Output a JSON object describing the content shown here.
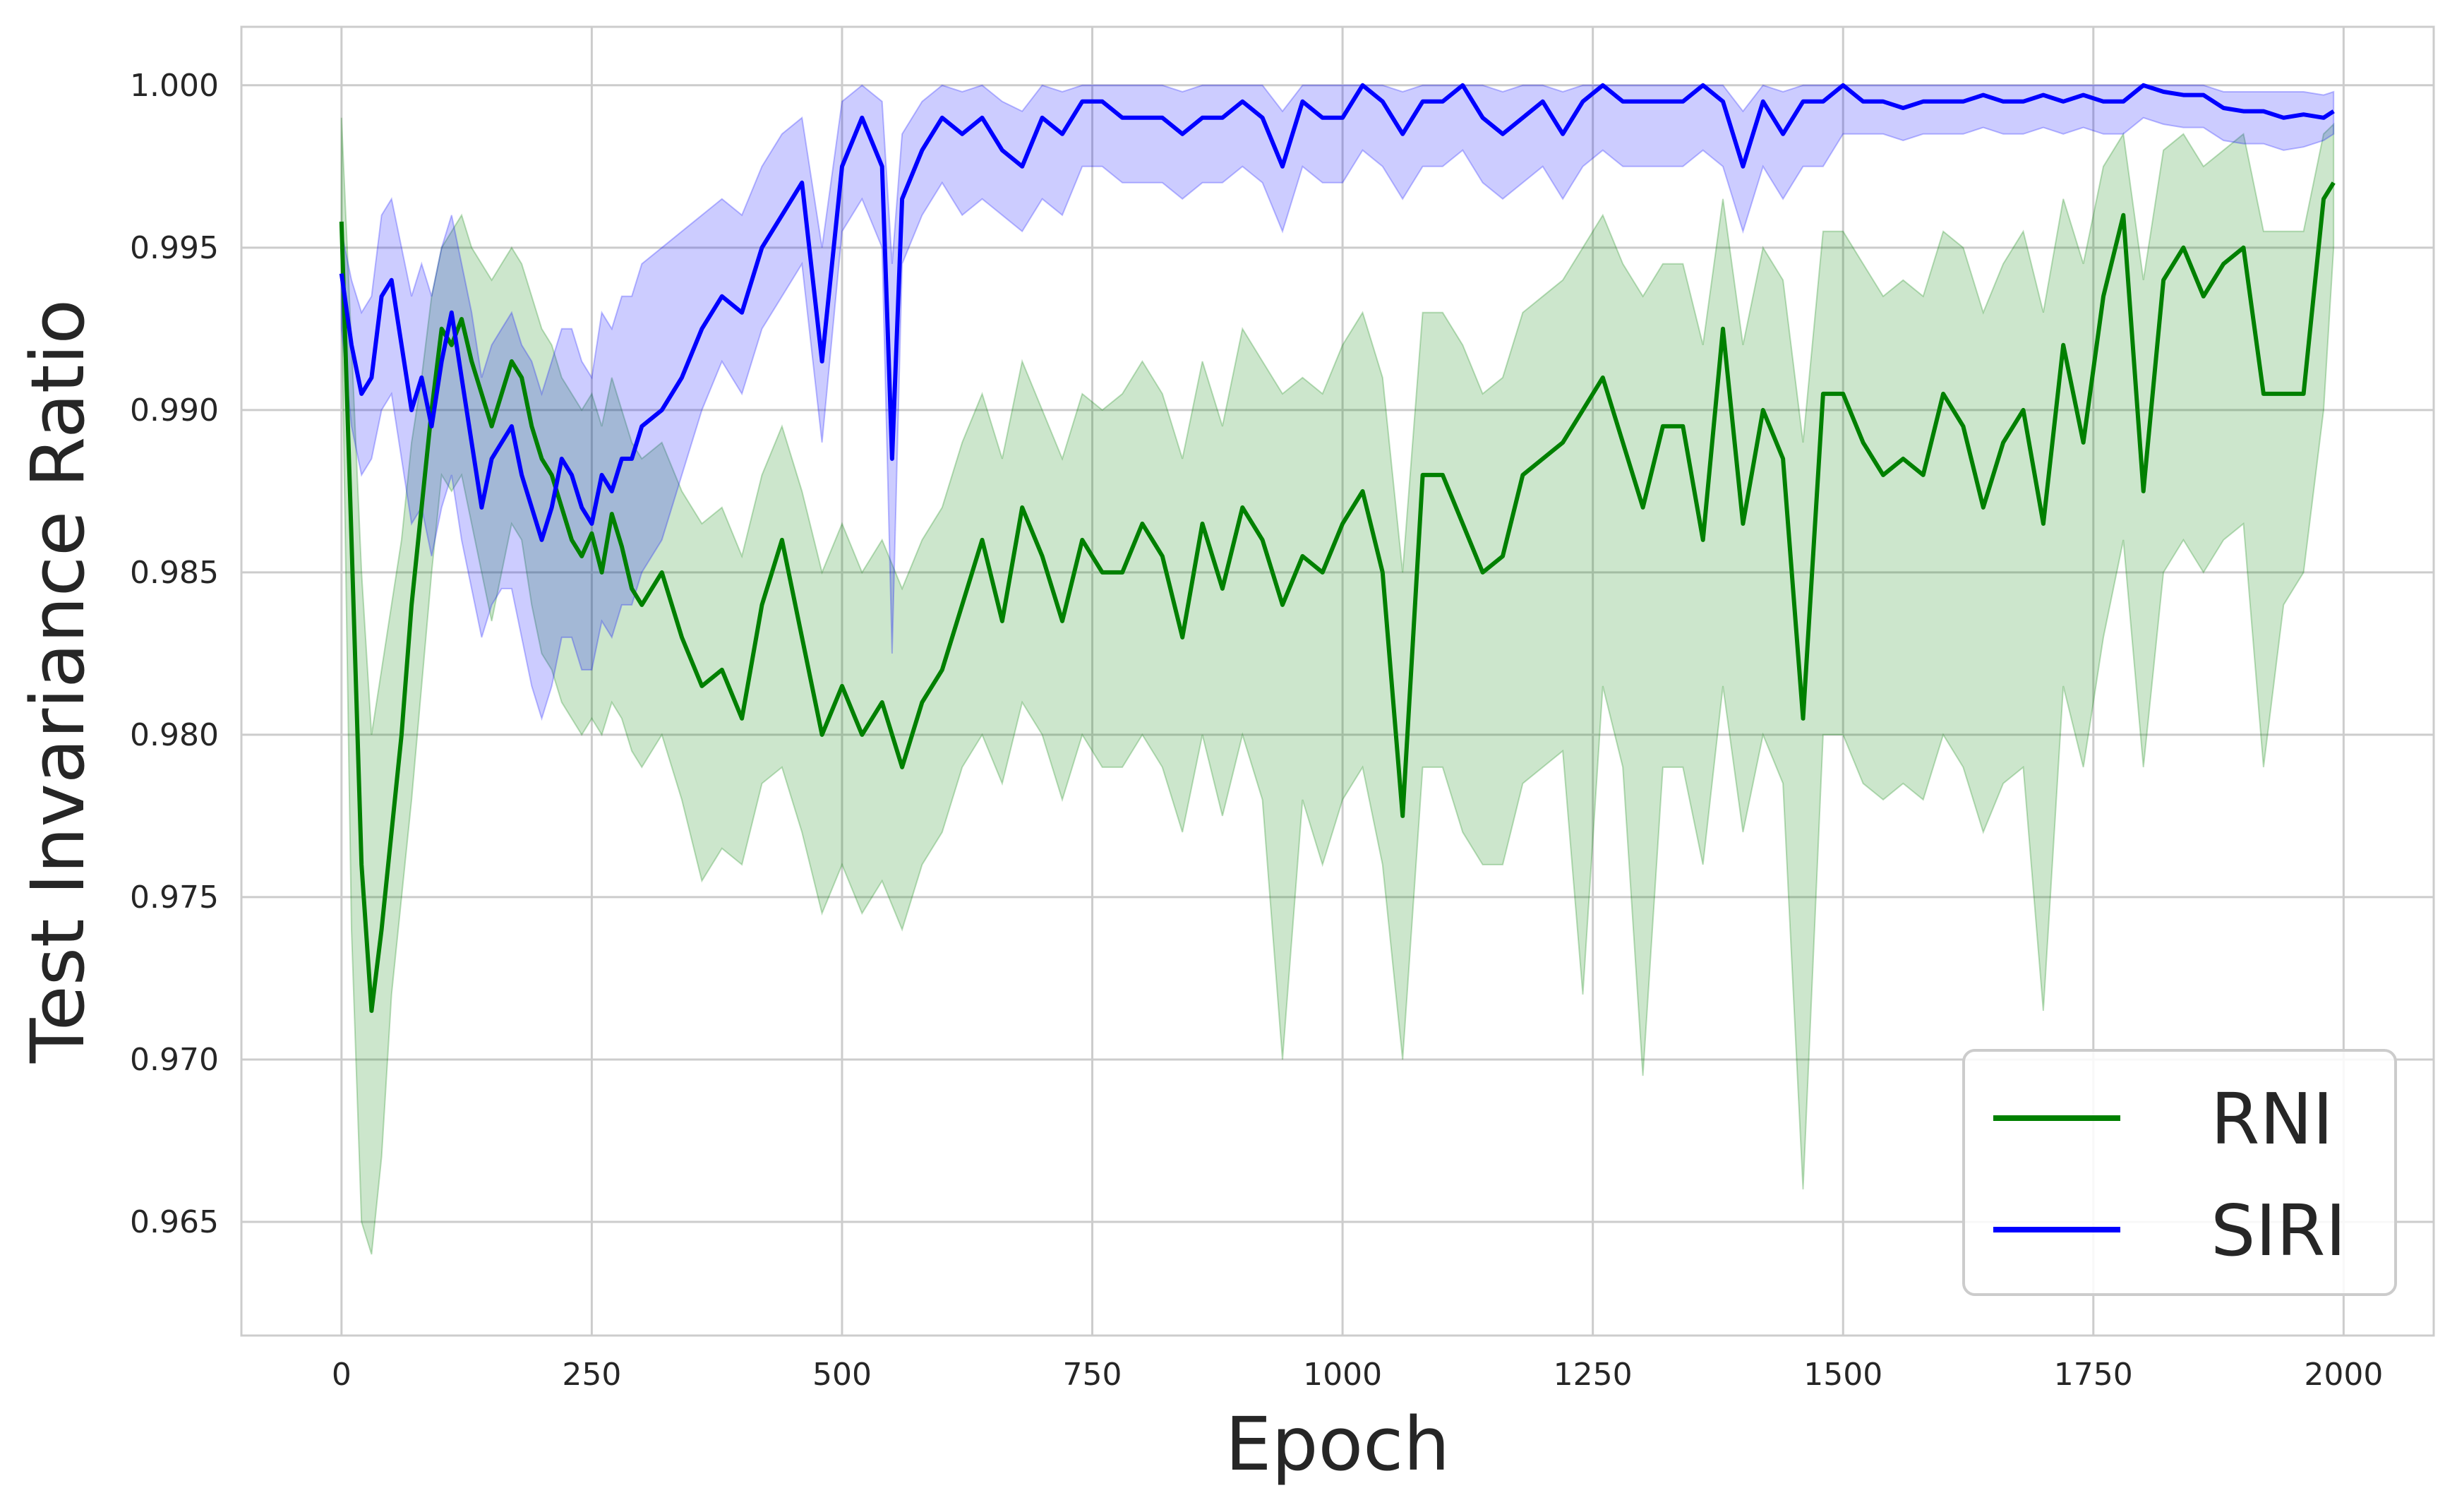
{
  "chart_data": {
    "type": "line",
    "title": "",
    "xlabel": "Epoch",
    "ylabel": "Test Invariance Ratio",
    "xlim": [
      -100,
      2090
    ],
    "ylim": [
      0.9615,
      1.0018
    ],
    "xticks": [
      0,
      250,
      500,
      750,
      1000,
      1250,
      1500,
      1750,
      2000
    ],
    "xtick_labels": [
      "0",
      "250",
      "500",
      "750",
      "1000",
      "1250",
      "1500",
      "1750",
      "2000"
    ],
    "yticks": [
      0.965,
      0.97,
      0.975,
      0.98,
      0.985,
      0.99,
      0.995,
      1.0
    ],
    "ytick_labels": [
      "0.965",
      "0.970",
      "0.975",
      "0.980",
      "0.985",
      "0.990",
      "0.995",
      "1.000"
    ],
    "grid": true,
    "legend_position": "bottom-right",
    "series": [
      {
        "name": "RNI",
        "color": "#008000",
        "band_color": "#008000",
        "x": [
          0,
          10,
          20,
          30,
          40,
          50,
          60,
          70,
          80,
          90,
          100,
          110,
          120,
          130,
          140,
          150,
          160,
          170,
          180,
          190,
          200,
          210,
          220,
          230,
          240,
          250,
          260,
          270,
          280,
          290,
          300,
          320,
          340,
          360,
          380,
          400,
          420,
          440,
          460,
          480,
          500,
          520,
          540,
          560,
          580,
          600,
          620,
          640,
          660,
          680,
          700,
          720,
          740,
          760,
          780,
          800,
          820,
          840,
          860,
          880,
          900,
          920,
          940,
          960,
          980,
          1000,
          1020,
          1040,
          1060,
          1080,
          1100,
          1120,
          1140,
          1160,
          1180,
          1200,
          1220,
          1240,
          1260,
          1280,
          1300,
          1320,
          1340,
          1360,
          1380,
          1400,
          1420,
          1440,
          1460,
          1480,
          1500,
          1520,
          1540,
          1560,
          1580,
          1600,
          1620,
          1640,
          1660,
          1680,
          1700,
          1720,
          1740,
          1760,
          1780,
          1800,
          1820,
          1840,
          1860,
          1880,
          1900,
          1920,
          1940,
          1960,
          1980,
          1990
        ],
        "values": [
          0.9958,
          0.986,
          0.976,
          0.9715,
          0.974,
          0.977,
          0.98,
          0.984,
          0.987,
          0.99,
          0.9925,
          0.992,
          0.9928,
          0.9915,
          0.9905,
          0.9895,
          0.9905,
          0.9915,
          0.991,
          0.9895,
          0.9885,
          0.988,
          0.987,
          0.986,
          0.9855,
          0.9862,
          0.985,
          0.9868,
          0.9858,
          0.9845,
          0.984,
          0.985,
          0.983,
          0.9815,
          0.982,
          0.9805,
          0.984,
          0.986,
          0.983,
          0.98,
          0.9815,
          0.98,
          0.981,
          0.979,
          0.981,
          0.982,
          0.984,
          0.986,
          0.9835,
          0.987,
          0.9855,
          0.9835,
          0.986,
          0.985,
          0.985,
          0.9865,
          0.9855,
          0.983,
          0.9865,
          0.9845,
          0.987,
          0.986,
          0.984,
          0.9855,
          0.985,
          0.9865,
          0.9875,
          0.985,
          0.9775,
          0.988,
          0.988,
          0.9865,
          0.985,
          0.9855,
          0.988,
          0.9885,
          0.989,
          0.99,
          0.991,
          0.989,
          0.987,
          0.9895,
          0.9895,
          0.986,
          0.9925,
          0.9865,
          0.99,
          0.9885,
          0.9805,
          0.9905,
          0.9905,
          0.989,
          0.988,
          0.9885,
          0.988,
          0.9905,
          0.9895,
          0.987,
          0.989,
          0.99,
          0.9865,
          0.992,
          0.989,
          0.9935,
          0.996,
          0.9875,
          0.994,
          0.995,
          0.9935,
          0.9945,
          0.995,
          0.9905,
          0.9905,
          0.9905,
          0.9965,
          0.997
        ],
        "lower": [
          0.9935,
          0.974,
          0.965,
          0.964,
          0.967,
          0.972,
          0.975,
          0.978,
          0.9815,
          0.985,
          0.988,
          0.9875,
          0.988,
          0.9865,
          0.985,
          0.9835,
          0.985,
          0.9865,
          0.986,
          0.984,
          0.9825,
          0.982,
          0.981,
          0.9805,
          0.98,
          0.9805,
          0.98,
          0.981,
          0.9805,
          0.9795,
          0.979,
          0.98,
          0.978,
          0.9755,
          0.9765,
          0.976,
          0.9785,
          0.979,
          0.977,
          0.9745,
          0.976,
          0.9745,
          0.9755,
          0.974,
          0.976,
          0.977,
          0.979,
          0.98,
          0.9785,
          0.981,
          0.98,
          0.978,
          0.98,
          0.979,
          0.979,
          0.98,
          0.979,
          0.977,
          0.98,
          0.9775,
          0.98,
          0.978,
          0.97,
          0.978,
          0.976,
          0.978,
          0.979,
          0.976,
          0.97,
          0.979,
          0.979,
          0.977,
          0.976,
          0.976,
          0.9785,
          0.979,
          0.9795,
          0.972,
          0.9815,
          0.979,
          0.9695,
          0.979,
          0.979,
          0.976,
          0.9815,
          0.977,
          0.98,
          0.9785,
          0.966,
          0.98,
          0.98,
          0.9785,
          0.978,
          0.9785,
          0.978,
          0.98,
          0.979,
          0.977,
          0.9785,
          0.979,
          0.9715,
          0.9815,
          0.979,
          0.983,
          0.986,
          0.979,
          0.985,
          0.986,
          0.985,
          0.986,
          0.9865,
          0.979,
          0.984,
          0.985,
          0.99,
          0.995
        ],
        "upper": [
          0.999,
          0.992,
          0.985,
          0.98,
          0.982,
          0.984,
          0.986,
          0.989,
          0.991,
          0.9935,
          0.995,
          0.9955,
          0.996,
          0.995,
          0.9945,
          0.994,
          0.9945,
          0.995,
          0.9945,
          0.9935,
          0.9925,
          0.992,
          0.991,
          0.9905,
          0.99,
          0.9905,
          0.9895,
          0.991,
          0.99,
          0.989,
          0.9885,
          0.989,
          0.9875,
          0.9865,
          0.987,
          0.9855,
          0.988,
          0.9895,
          0.9875,
          0.985,
          0.9865,
          0.985,
          0.986,
          0.9845,
          0.986,
          0.987,
          0.989,
          0.9905,
          0.9885,
          0.9915,
          0.99,
          0.9885,
          0.9905,
          0.99,
          0.9905,
          0.9915,
          0.9905,
          0.9885,
          0.9915,
          0.9895,
          0.9925,
          0.9915,
          0.9905,
          0.991,
          0.9905,
          0.992,
          0.993,
          0.991,
          0.985,
          0.993,
          0.993,
          0.992,
          0.9905,
          0.991,
          0.993,
          0.9935,
          0.994,
          0.995,
          0.996,
          0.9945,
          0.9935,
          0.9945,
          0.9945,
          0.992,
          0.9965,
          0.992,
          0.995,
          0.994,
          0.989,
          0.9955,
          0.9955,
          0.9945,
          0.9935,
          0.994,
          0.9935,
          0.9955,
          0.995,
          0.993,
          0.9945,
          0.9955,
          0.993,
          0.9965,
          0.9945,
          0.9975,
          0.9985,
          0.994,
          0.998,
          0.9985,
          0.9975,
          0.998,
          0.9985,
          0.9955,
          0.9955,
          0.9955,
          0.9985,
          0.9988
        ]
      },
      {
        "name": "SIRI",
        "color": "#0000ff",
        "band_color": "#0000ff",
        "x": [
          0,
          10,
          20,
          30,
          40,
          50,
          60,
          70,
          80,
          90,
          100,
          110,
          120,
          130,
          140,
          150,
          160,
          170,
          180,
          190,
          200,
          210,
          220,
          230,
          240,
          250,
          260,
          270,
          280,
          290,
          300,
          320,
          340,
          360,
          380,
          400,
          420,
          440,
          460,
          480,
          500,
          520,
          540,
          550,
          560,
          580,
          600,
          620,
          640,
          660,
          680,
          700,
          720,
          740,
          760,
          780,
          800,
          820,
          840,
          860,
          880,
          900,
          920,
          940,
          960,
          980,
          1000,
          1020,
          1040,
          1060,
          1080,
          1100,
          1120,
          1140,
          1160,
          1180,
          1200,
          1220,
          1240,
          1260,
          1280,
          1300,
          1320,
          1340,
          1360,
          1380,
          1400,
          1420,
          1440,
          1460,
          1480,
          1500,
          1520,
          1540,
          1560,
          1580,
          1600,
          1620,
          1640,
          1660,
          1680,
          1700,
          1720,
          1740,
          1760,
          1780,
          1800,
          1820,
          1840,
          1860,
          1880,
          1900,
          1920,
          1940,
          1960,
          1980,
          1990
        ],
        "values": [
          0.9942,
          0.992,
          0.9905,
          0.991,
          0.9935,
          0.994,
          0.992,
          0.99,
          0.991,
          0.9895,
          0.9915,
          0.993,
          0.991,
          0.989,
          0.987,
          0.9885,
          0.989,
          0.9895,
          0.988,
          0.987,
          0.986,
          0.987,
          0.9885,
          0.988,
          0.987,
          0.9865,
          0.988,
          0.9875,
          0.9885,
          0.9885,
          0.9895,
          0.99,
          0.991,
          0.9925,
          0.9935,
          0.993,
          0.995,
          0.996,
          0.997,
          0.9915,
          0.9975,
          0.999,
          0.9975,
          0.9885,
          0.9965,
          0.998,
          0.999,
          0.9985,
          0.999,
          0.998,
          0.9975,
          0.999,
          0.9985,
          0.9995,
          0.9995,
          0.999,
          0.999,
          0.999,
          0.9985,
          0.999,
          0.999,
          0.9995,
          0.999,
          0.9975,
          0.9995,
          0.999,
          0.999,
          1.0,
          0.9995,
          0.9985,
          0.9995,
          0.9995,
          1.0,
          0.999,
          0.9985,
          0.999,
          0.9995,
          0.9985,
          0.9995,
          1.0,
          0.9995,
          0.9995,
          0.9995,
          0.9995,
          1.0,
          0.9995,
          0.9975,
          0.9995,
          0.9985,
          0.9995,
          0.9995,
          1.0,
          0.9995,
          0.9995,
          0.9993,
          0.9995,
          0.9995,
          0.9995,
          0.9997,
          0.9995,
          0.9995,
          0.9997,
          0.9995,
          0.9997,
          0.9995,
          0.9995,
          1.0,
          0.9998,
          0.9997,
          0.9997,
          0.9993,
          0.9992,
          0.9992,
          0.999,
          0.9991,
          0.999,
          0.9992
        ],
        "lower": [
          0.9925,
          0.9895,
          0.988,
          0.9885,
          0.99,
          0.9905,
          0.9885,
          0.9865,
          0.987,
          0.9855,
          0.987,
          0.988,
          0.986,
          0.9845,
          0.983,
          0.984,
          0.9845,
          0.9845,
          0.983,
          0.9815,
          0.9805,
          0.9815,
          0.983,
          0.983,
          0.982,
          0.982,
          0.9835,
          0.983,
          0.984,
          0.984,
          0.985,
          0.986,
          0.988,
          0.99,
          0.9915,
          0.9905,
          0.9925,
          0.9935,
          0.9945,
          0.989,
          0.9955,
          0.9965,
          0.995,
          0.9825,
          0.9945,
          0.996,
          0.997,
          0.996,
          0.9965,
          0.996,
          0.9955,
          0.9965,
          0.996,
          0.9975,
          0.9975,
          0.997,
          0.997,
          0.997,
          0.9965,
          0.997,
          0.997,
          0.9975,
          0.997,
          0.9955,
          0.9975,
          0.997,
          0.997,
          0.998,
          0.9975,
          0.9965,
          0.9975,
          0.9975,
          0.998,
          0.997,
          0.9965,
          0.997,
          0.9975,
          0.9965,
          0.9975,
          0.998,
          0.9975,
          0.9975,
          0.9975,
          0.9975,
          0.998,
          0.9975,
          0.9955,
          0.9975,
          0.9965,
          0.9975,
          0.9975,
          0.9985,
          0.9985,
          0.9985,
          0.9983,
          0.9985,
          0.9985,
          0.9985,
          0.9987,
          0.9985,
          0.9985,
          0.9987,
          0.9985,
          0.9987,
          0.9985,
          0.9985,
          0.999,
          0.9988,
          0.9987,
          0.9987,
          0.9983,
          0.9982,
          0.9982,
          0.998,
          0.9981,
          0.9983,
          0.9985
        ],
        "upper": [
          0.9955,
          0.994,
          0.993,
          0.9935,
          0.996,
          0.9965,
          0.995,
          0.9935,
          0.9945,
          0.9935,
          0.995,
          0.996,
          0.9945,
          0.993,
          0.991,
          0.992,
          0.9925,
          0.993,
          0.992,
          0.9915,
          0.9905,
          0.9915,
          0.9925,
          0.9925,
          0.9915,
          0.991,
          0.993,
          0.9925,
          0.9935,
          0.9935,
          0.9945,
          0.995,
          0.9955,
          0.996,
          0.9965,
          0.996,
          0.9975,
          0.9985,
          0.999,
          0.995,
          0.9995,
          1.0,
          0.9995,
          0.9945,
          0.9985,
          0.9995,
          1.0,
          0.9998,
          1.0,
          0.9995,
          0.9992,
          1.0,
          0.9998,
          1.0,
          1.0,
          1.0,
          1.0,
          1.0,
          0.9998,
          1.0,
          1.0,
          1.0,
          1.0,
          0.9992,
          1.0,
          1.0,
          1.0,
          1.0,
          1.0,
          0.9998,
          1.0,
          1.0,
          1.0,
          1.0,
          0.9998,
          1.0,
          1.0,
          0.9998,
          1.0,
          1.0,
          1.0,
          1.0,
          1.0,
          1.0,
          1.0,
          1.0,
          0.9992,
          1.0,
          0.9998,
          1.0,
          1.0,
          1.0,
          1.0,
          1.0,
          1.0,
          1.0,
          1.0,
          1.0,
          1.0,
          1.0,
          1.0,
          1.0,
          1.0,
          1.0,
          1.0,
          1.0,
          1.0,
          1.0,
          1.0,
          1.0,
          0.9998,
          0.9998,
          0.9998,
          0.9998,
          0.9998,
          0.9997,
          0.9998
        ]
      }
    ]
  }
}
